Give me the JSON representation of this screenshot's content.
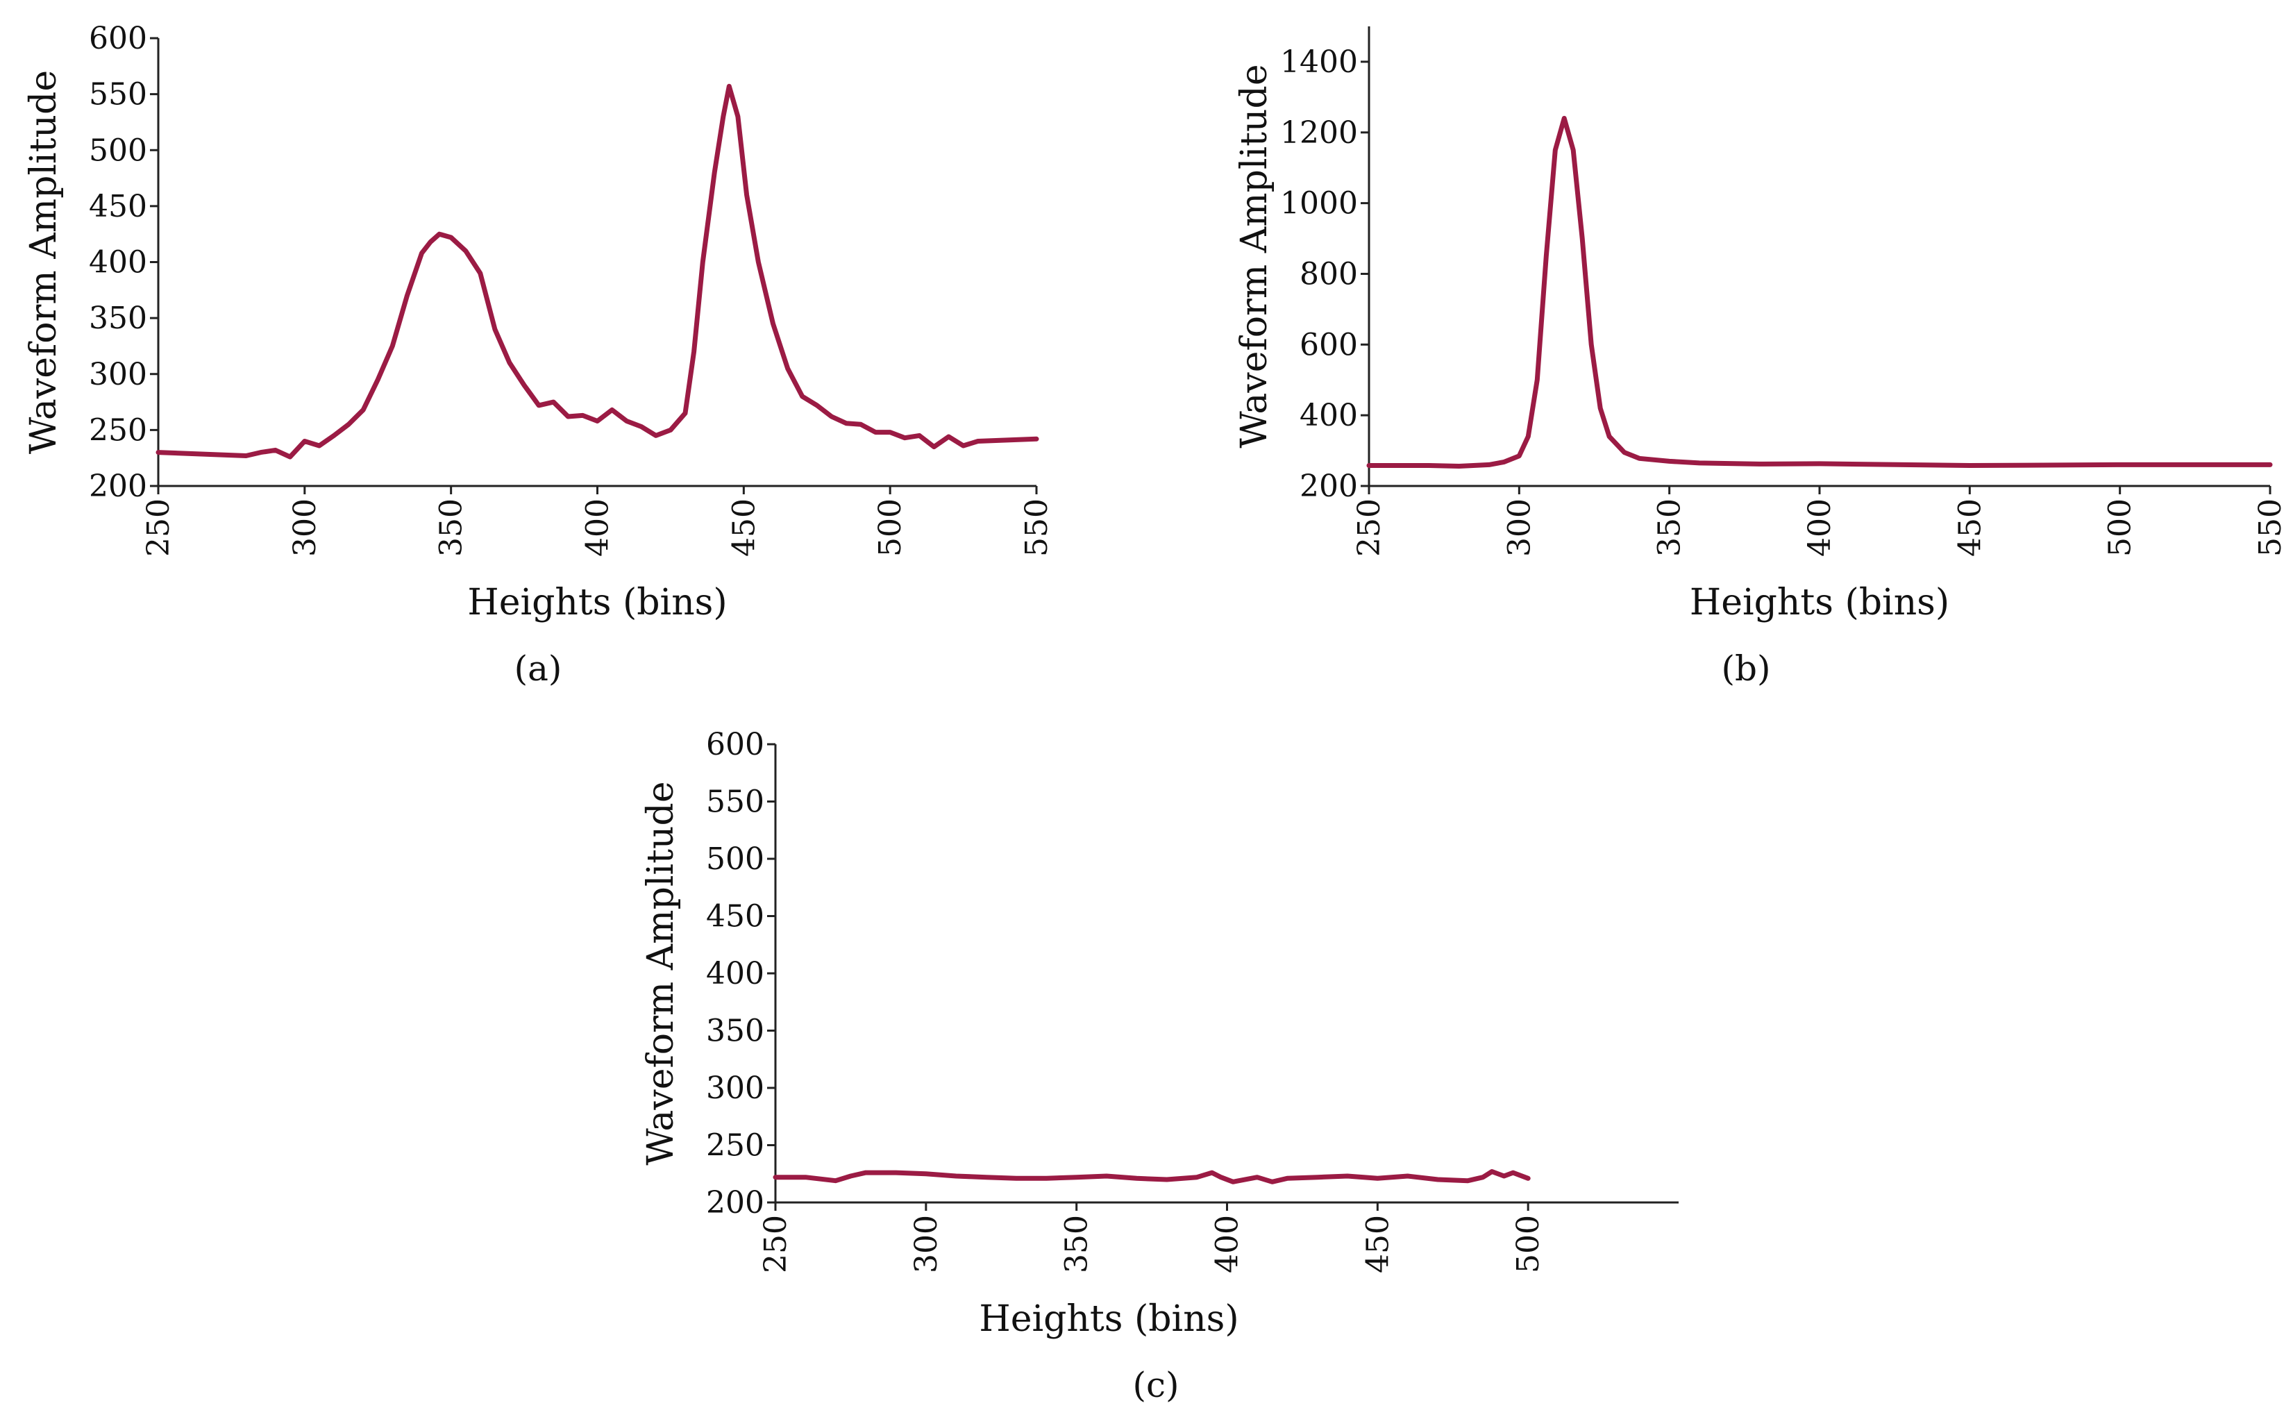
{
  "line_color": "#9b1b44",
  "chart_data": [
    {
      "type": "line",
      "caption": "(a)",
      "xlabel": "Heights (bins)",
      "ylabel": "Waveform Amplitude",
      "xlim": [
        250,
        550
      ],
      "ylim": [
        200,
        600
      ],
      "xticks": [
        250,
        300,
        350,
        400,
        450,
        500,
        550
      ],
      "yticks": [
        200,
        250,
        300,
        350,
        400,
        450,
        500,
        550,
        600
      ],
      "series": [
        {
          "name": "waveform",
          "x": [
            250,
            260,
            270,
            280,
            285,
            290,
            295,
            300,
            305,
            310,
            315,
            320,
            325,
            330,
            335,
            340,
            343,
            346,
            350,
            355,
            360,
            365,
            370,
            375,
            380,
            385,
            390,
            395,
            400,
            405,
            410,
            415,
            420,
            425,
            430,
            433,
            436,
            440,
            443,
            445,
            448,
            451,
            455,
            460,
            465,
            470,
            475,
            480,
            485,
            490,
            495,
            500,
            505,
            510,
            515,
            520,
            525,
            530,
            540,
            550
          ],
          "y": [
            230,
            229,
            228,
            227,
            230,
            232,
            226,
            240,
            236,
            245,
            255,
            268,
            295,
            325,
            370,
            408,
            418,
            425,
            422,
            410,
            390,
            340,
            310,
            290,
            272,
            275,
            262,
            263,
            258,
            268,
            258,
            253,
            245,
            250,
            265,
            320,
            400,
            480,
            530,
            557,
            530,
            460,
            400,
            345,
            305,
            280,
            272,
            262,
            256,
            255,
            248,
            248,
            243,
            245,
            235,
            244,
            236,
            240,
            241,
            242
          ]
        }
      ]
    },
    {
      "type": "line",
      "caption": "(b)",
      "xlabel": "Heights (bins)",
      "ylabel": "Waveform Amplitude",
      "xlim": [
        250,
        550
      ],
      "ylim": [
        200,
        1500
      ],
      "xticks": [
        250,
        300,
        350,
        400,
        450,
        500,
        550
      ],
      "yticks": [
        200,
        400,
        600,
        800,
        1000,
        1200,
        1400
      ],
      "series": [
        {
          "name": "waveform",
          "x": [
            250,
            270,
            280,
            290,
            295,
            300,
            303,
            306,
            309,
            312,
            315,
            318,
            321,
            324,
            327,
            330,
            335,
            340,
            350,
            360,
            380,
            400,
            450,
            500,
            550
          ],
          "y": [
            258,
            258,
            256,
            260,
            268,
            285,
            340,
            500,
            850,
            1150,
            1240,
            1150,
            900,
            600,
            420,
            340,
            295,
            278,
            270,
            265,
            262,
            263,
            258,
            260,
            260
          ]
        }
      ]
    },
    {
      "type": "line",
      "caption": "(c)",
      "xlabel": "Heights (bins)",
      "ylabel": "Waveform Amplitude",
      "xlim": [
        250,
        550
      ],
      "ylim": [
        200,
        600
      ],
      "xticks": [
        250,
        300,
        350,
        400,
        450,
        500
      ],
      "yticks": [
        200,
        250,
        300,
        350,
        400,
        450,
        500,
        550,
        600
      ],
      "series": [
        {
          "name": "waveform",
          "x": [
            250,
            260,
            270,
            275,
            280,
            290,
            300,
            310,
            320,
            330,
            340,
            350,
            360,
            370,
            380,
            390,
            395,
            398,
            402,
            410,
            415,
            420,
            430,
            440,
            450,
            460,
            470,
            480,
            485,
            488,
            492,
            495,
            500
          ],
          "y": [
            222,
            222,
            219,
            223,
            226,
            226,
            225,
            223,
            222,
            221,
            221,
            222,
            223,
            221,
            220,
            222,
            226,
            222,
            218,
            222,
            218,
            221,
            222,
            223,
            221,
            223,
            220,
            219,
            222,
            227,
            223,
            226,
            221
          ]
        }
      ]
    }
  ]
}
